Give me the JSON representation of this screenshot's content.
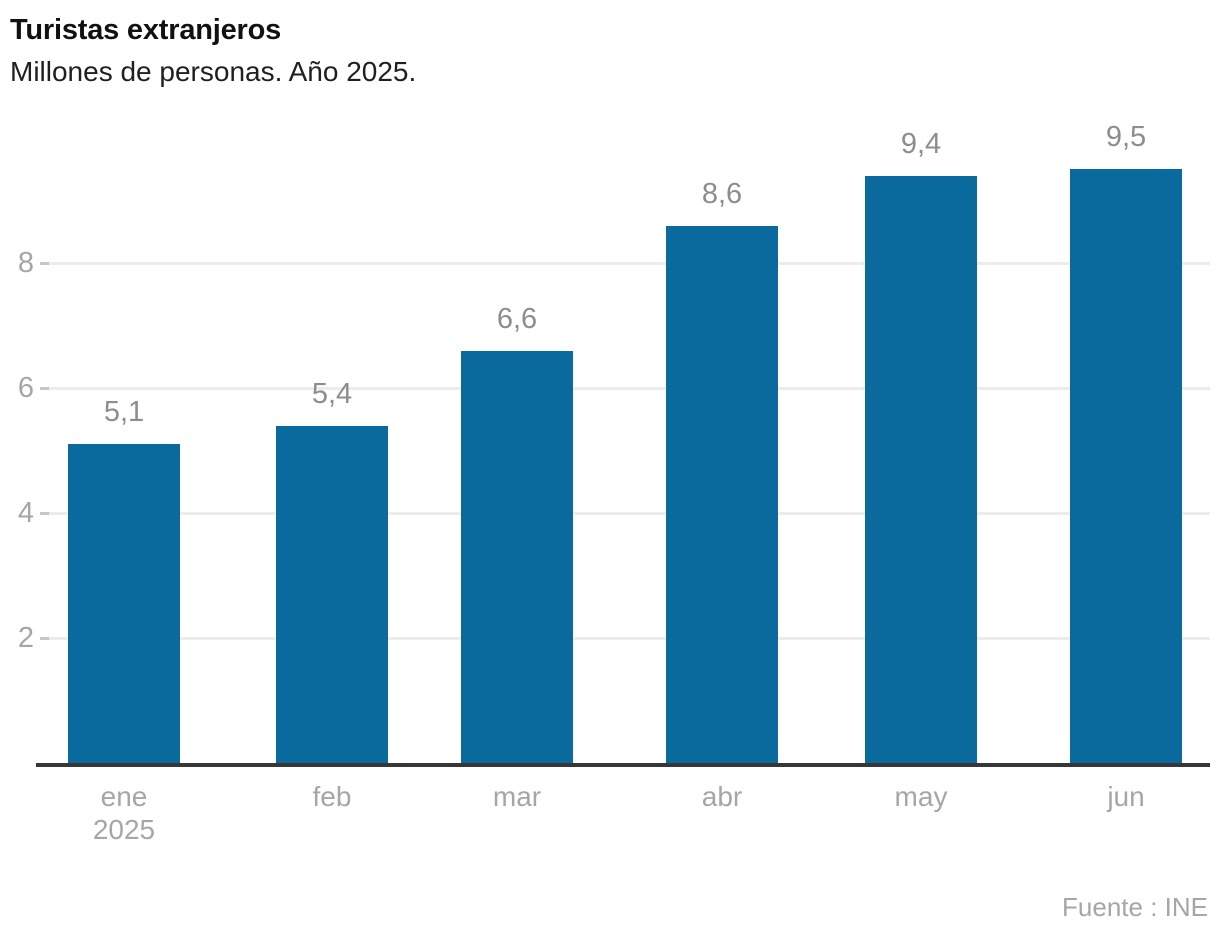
{
  "header": {
    "title": "Turistas extranjeros",
    "subtitle": "Millones de personas. Año 2025."
  },
  "source": {
    "label": "Fuente : INE"
  },
  "colors": {
    "bar": "#0a699d",
    "gridline": "#ececec",
    "grid_tick": "#c6c6c6",
    "axis_line": "#373737",
    "title_text": "#111111",
    "subtitle_text": "#1f1f1f",
    "value_label_text": "#8d8d8d",
    "axis_label_text": "#a6a6a6"
  },
  "chart_data": {
    "type": "bar",
    "title": "Turistas extranjeros",
    "subtitle": "Millones de personas. Año 2025.",
    "ylabel": "Millones de personas",
    "categories": [
      "ene",
      "feb",
      "mar",
      "abr",
      "may",
      "jun"
    ],
    "x_secondary_label": {
      "category_index": 0,
      "text": "2025"
    },
    "values": [
      5.1,
      5.4,
      6.6,
      8.6,
      9.4,
      9.5
    ],
    "value_labels": [
      "5,1",
      "5,4",
      "6,6",
      "8,6",
      "9,4",
      "9,5"
    ],
    "y_ticks": [
      2,
      4,
      6,
      8
    ],
    "ylim": [
      0,
      10
    ],
    "grid": true,
    "legend": "none",
    "source": "Fuente : INE"
  }
}
